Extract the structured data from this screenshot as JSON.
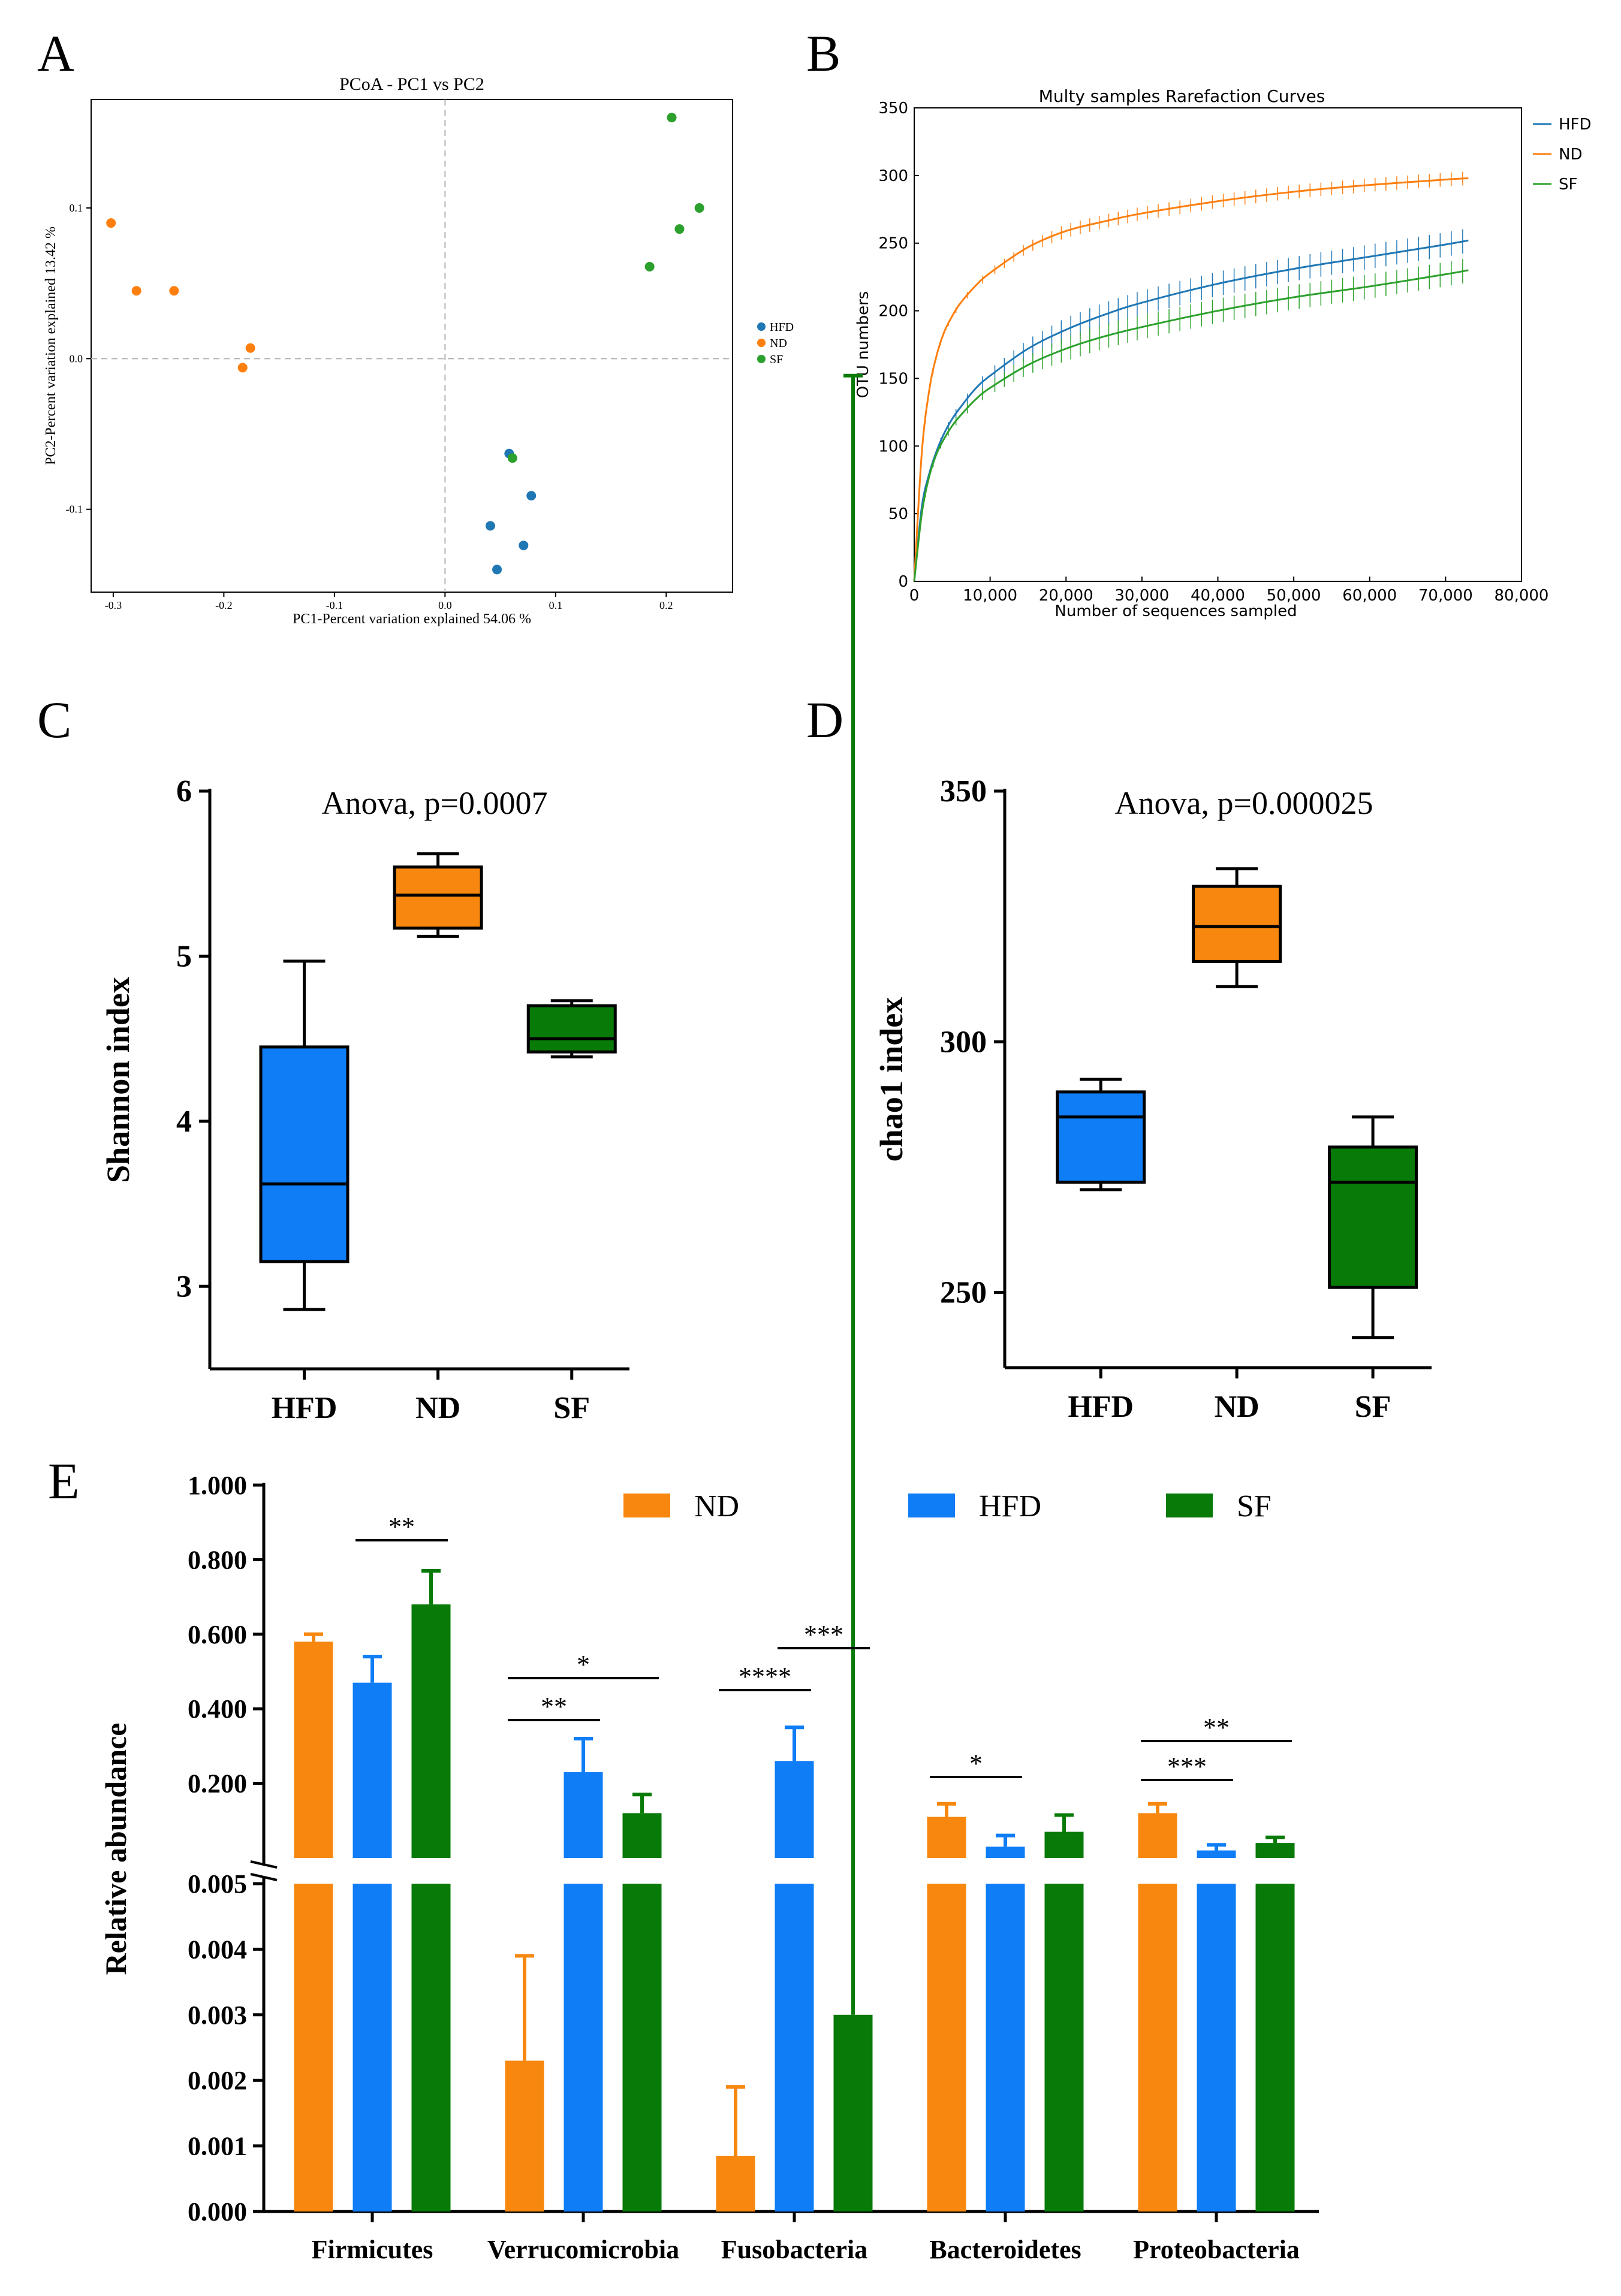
{
  "colors": {
    "ND": "#ff7f0e",
    "HFD": "#1f77b4",
    "SF": "#2ca02c",
    "ND_bar": "#f7870f",
    "HFD_bar": "#0e7df6",
    "SF_bar": "#077a07",
    "axis": "#000000",
    "ref": "#b3b3b3"
  },
  "panel_labels": [
    "A",
    "B",
    "C",
    "D",
    "E"
  ],
  "chart_data": [
    {
      "panel": "A",
      "type": "scatter",
      "title": "PCoA - PC1 vs PC2",
      "xlabel": "PC1-Percent variation explained 54.06 %",
      "ylabel": "PC2-Percent variation explained 13.42 %",
      "xlim": [
        -0.32,
        0.26
      ],
      "ylim": [
        -0.155,
        0.172
      ],
      "xticks": [
        -0.3,
        -0.2,
        -0.1,
        0.0,
        0.1,
        0.2
      ],
      "xticklabels": [
        "-0.3",
        "-0.2",
        "-0.1",
        "0.0",
        "0.1",
        "0.2"
      ],
      "yticks": [
        -0.1,
        0.0,
        0.1
      ],
      "yticklabels": [
        "-0.1",
        "0.0",
        "0.1"
      ],
      "legend": [
        "HFD",
        "ND",
        "SF"
      ],
      "series": [
        {
          "name": "HFD",
          "points": [
            [
              0.058,
              -0.063
            ],
            [
              0.078,
              -0.091
            ],
            [
              0.041,
              -0.111
            ],
            [
              0.071,
              -0.124
            ],
            [
              0.047,
              -0.14
            ]
          ]
        },
        {
          "name": "ND",
          "points": [
            [
              -0.302,
              0.09
            ],
            [
              -0.279,
              0.045
            ],
            [
              -0.245,
              0.045
            ],
            [
              -0.176,
              0.007
            ],
            [
              -0.183,
              -0.006
            ]
          ]
        },
        {
          "name": "SF",
          "points": [
            [
              0.205,
              0.16
            ],
            [
              0.23,
              0.1
            ],
            [
              0.212,
              0.086
            ],
            [
              0.185,
              0.061
            ],
            [
              0.061,
              -0.066
            ]
          ]
        }
      ]
    },
    {
      "panel": "B",
      "type": "line",
      "title": "Multy samples Rarefaction Curves",
      "xlabel": "Number of sequences sampled",
      "ylabel": "OTU numbers",
      "xlim": [
        0,
        80000
      ],
      "ylim": [
        0,
        350
      ],
      "xticks": [
        0,
        10000,
        20000,
        30000,
        40000,
        50000,
        60000,
        70000,
        80000
      ],
      "xticklabels": [
        "0",
        "10,000",
        "20,000",
        "30,000",
        "40,000",
        "50,000",
        "60,000",
        "70,000",
        "80,000"
      ],
      "yticks": [
        0,
        50,
        100,
        150,
        200,
        250,
        300,
        350
      ],
      "yticklabels": [
        "0",
        "50",
        "100",
        "150",
        "200",
        "250",
        "300",
        "350"
      ],
      "legend": [
        "HFD",
        "ND",
        "SF"
      ],
      "series": [
        {
          "name": "HFD",
          "x": [
            0,
            1000,
            2000,
            3000,
            4000,
            5000,
            6000,
            8000,
            10000,
            15000,
            20000,
            25000,
            30000,
            40000,
            50000,
            60000,
            70000,
            73000
          ],
          "y": [
            0,
            55,
            80,
            97,
            110,
            120,
            128,
            142,
            152,
            172,
            186,
            197,
            206,
            220,
            231,
            240,
            249,
            252
          ]
        },
        {
          "name": "ND",
          "x": [
            0,
            1000,
            2000,
            3000,
            4000,
            5000,
            6000,
            8000,
            10000,
            15000,
            20000,
            25000,
            30000,
            40000,
            50000,
            60000,
            70000,
            73000
          ],
          "y": [
            0,
            95,
            142,
            168,
            185,
            196,
            205,
            218,
            228,
            247,
            259,
            266,
            272,
            281,
            288,
            293,
            297,
            298
          ]
        },
        {
          "name": "SF",
          "x": [
            0,
            1000,
            2000,
            3000,
            4000,
            5000,
            6000,
            8000,
            10000,
            15000,
            20000,
            25000,
            30000,
            40000,
            50000,
            60000,
            70000,
            73000
          ],
          "y": [
            0,
            50,
            78,
            95,
            106,
            115,
            122,
            134,
            143,
            160,
            172,
            181,
            188,
            200,
            210,
            218,
            227,
            230
          ]
        }
      ]
    },
    {
      "panel": "C",
      "type": "box",
      "annotation": "Anova, p=0.0007",
      "ylabel": "Shannon index",
      "ylim": [
        2.5,
        6.0
      ],
      "yticks": [
        3,
        4,
        5,
        6
      ],
      "yticklabels": [
        "3",
        "4",
        "5",
        "6"
      ],
      "categories": [
        "HFD",
        "ND",
        "SF"
      ],
      "boxes": [
        {
          "name": "HFD",
          "min": 2.86,
          "q1": 3.15,
          "median": 3.62,
          "q3": 4.45,
          "max": 4.97
        },
        {
          "name": "ND",
          "min": 5.12,
          "q1": 5.17,
          "median": 5.37,
          "q3": 5.54,
          "max": 5.62
        },
        {
          "name": "SF",
          "min": 4.39,
          "q1": 4.42,
          "median": 4.5,
          "q3": 4.7,
          "max": 4.73
        }
      ]
    },
    {
      "panel": "D",
      "type": "box",
      "annotation": "Anova, p=0.000025",
      "ylabel": "chao1 index",
      "ylim": [
        235,
        350
      ],
      "yticks": [
        250,
        300,
        350
      ],
      "yticklabels": [
        "250",
        "300",
        "350"
      ],
      "categories": [
        "HFD",
        "ND",
        "SF"
      ],
      "boxes": [
        {
          "name": "HFD",
          "min": 270.5,
          "q1": 272,
          "median": 285,
          "q3": 290,
          "max": 292.5
        },
        {
          "name": "ND",
          "min": 311,
          "q1": 316,
          "median": 323,
          "q3": 331,
          "max": 334.5
        },
        {
          "name": "SF",
          "min": 241,
          "q1": 251,
          "median": 272,
          "q3": 279,
          "max": 285
        }
      ]
    },
    {
      "panel": "E",
      "type": "bar",
      "ylabel": "Relative abundance",
      "broken_axis": true,
      "upper_ylim": [
        0.0,
        1.0
      ],
      "upper_yticks": [
        0.2,
        0.4,
        0.6,
        0.8,
        1.0
      ],
      "upper_yticklabels": [
        "0.200",
        "0.400",
        "0.600",
        "0.800",
        "1.000"
      ],
      "lower_ylim": [
        0.0,
        0.005
      ],
      "lower_yticks": [
        0.0,
        0.001,
        0.002,
        0.003,
        0.004,
        0.005
      ],
      "lower_yticklabels": [
        "0.000",
        "0.001",
        "0.002",
        "0.003",
        "0.004",
        "0.005"
      ],
      "categories": [
        "Firmicutes",
        "Verrucomicrobia",
        "Fusobacteria",
        "Bacteroidetes",
        "Proteobacteria"
      ],
      "legend": [
        "ND",
        "HFD",
        "SF"
      ],
      "series": [
        {
          "name": "ND",
          "values": [
            0.58,
            0.0023,
            0.00085,
            0.11,
            0.12
          ],
          "errors": [
            0.02,
            0.0016,
            0.00105,
            0.035,
            0.025
          ]
        },
        {
          "name": "HFD",
          "values": [
            0.47,
            0.23,
            0.26,
            0.03,
            0.02
          ],
          "errors": [
            0.07,
            0.09,
            0.09,
            0.03,
            0.015
          ]
        },
        {
          "name": "SF",
          "values": [
            0.68,
            0.12,
            0.003,
            0.07,
            0.04
          ],
          "errors": [
            0.09,
            0.05,
            0.025,
            0.045,
            0.015
          ]
        }
      ],
      "significance": [
        {
          "category": 0,
          "from": "HFD",
          "to": "SF",
          "label": "**"
        },
        {
          "category": 1,
          "from": "ND",
          "to": "SF",
          "label": "*"
        },
        {
          "category": 1,
          "from": "ND",
          "to": "HFD",
          "label": "**"
        },
        {
          "category": 2,
          "from": "ND",
          "to": "HFD",
          "label": "****"
        },
        {
          "category": 2,
          "from": "HFD",
          "to": "SF",
          "label": "***"
        },
        {
          "category": 3,
          "from": "ND",
          "to": "HFD",
          "label": "*"
        },
        {
          "category": 4,
          "from": "ND",
          "to": "SF",
          "label": "**"
        },
        {
          "category": 4,
          "from": "ND",
          "to": "HFD",
          "label": "***"
        }
      ]
    }
  ]
}
